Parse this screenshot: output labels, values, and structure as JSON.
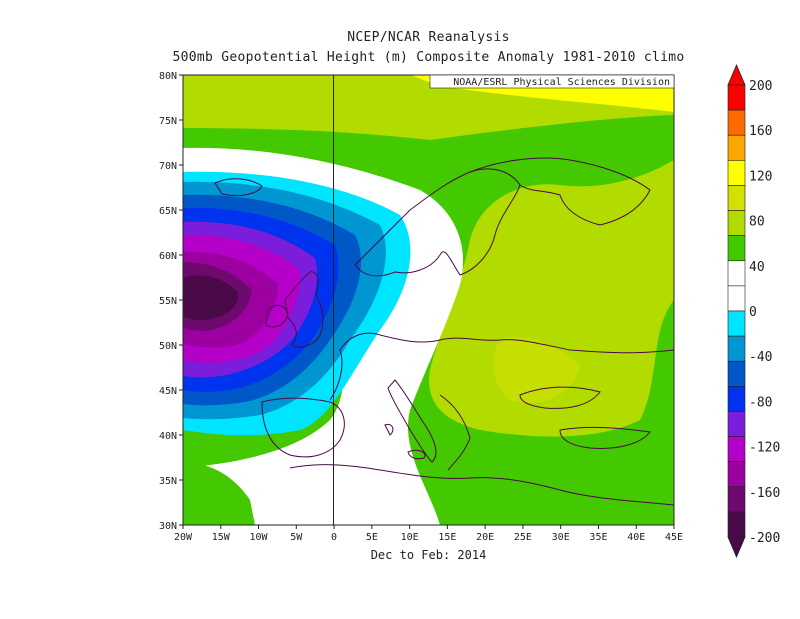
{
  "header": {
    "title": "NCEP/NCAR Reanalysis",
    "subtitle": "500mb Geopotential Height (m) Composite Anomaly 1981-2010 climo"
  },
  "credit": "NOAA/ESRL Physical Sciences Division",
  "caption": "Dec to Feb: 2014",
  "map": {
    "lon_labels": [
      "20W",
      "15W",
      "10W",
      "5W",
      "0",
      "5E",
      "10E",
      "15E",
      "20E",
      "25E",
      "30E",
      "35E",
      "40E",
      "45E"
    ],
    "lat_labels": [
      "30N",
      "35N",
      "40N",
      "45N",
      "50N",
      "55N",
      "60N",
      "65N",
      "70N",
      "75N",
      "80N"
    ]
  },
  "colorbar": {
    "labels": [
      "200",
      "160",
      "120",
      "80",
      "40",
      "0",
      "-40",
      "-80",
      "-120",
      "-160",
      "-200"
    ],
    "colors": [
      "#ff0000",
      "#ff6a00",
      "#ffa500",
      "#ffff00",
      "#d4e000",
      "#b2dc00",
      "#44c800",
      "#ffffff",
      "#ffffff",
      "#00e5ff",
      "#0096d2",
      "#0058c8",
      "#0033ee",
      "#7a1edc",
      "#b400c8",
      "#9c00a0",
      "#6e0a6e",
      "#4a0a4a"
    ]
  }
}
